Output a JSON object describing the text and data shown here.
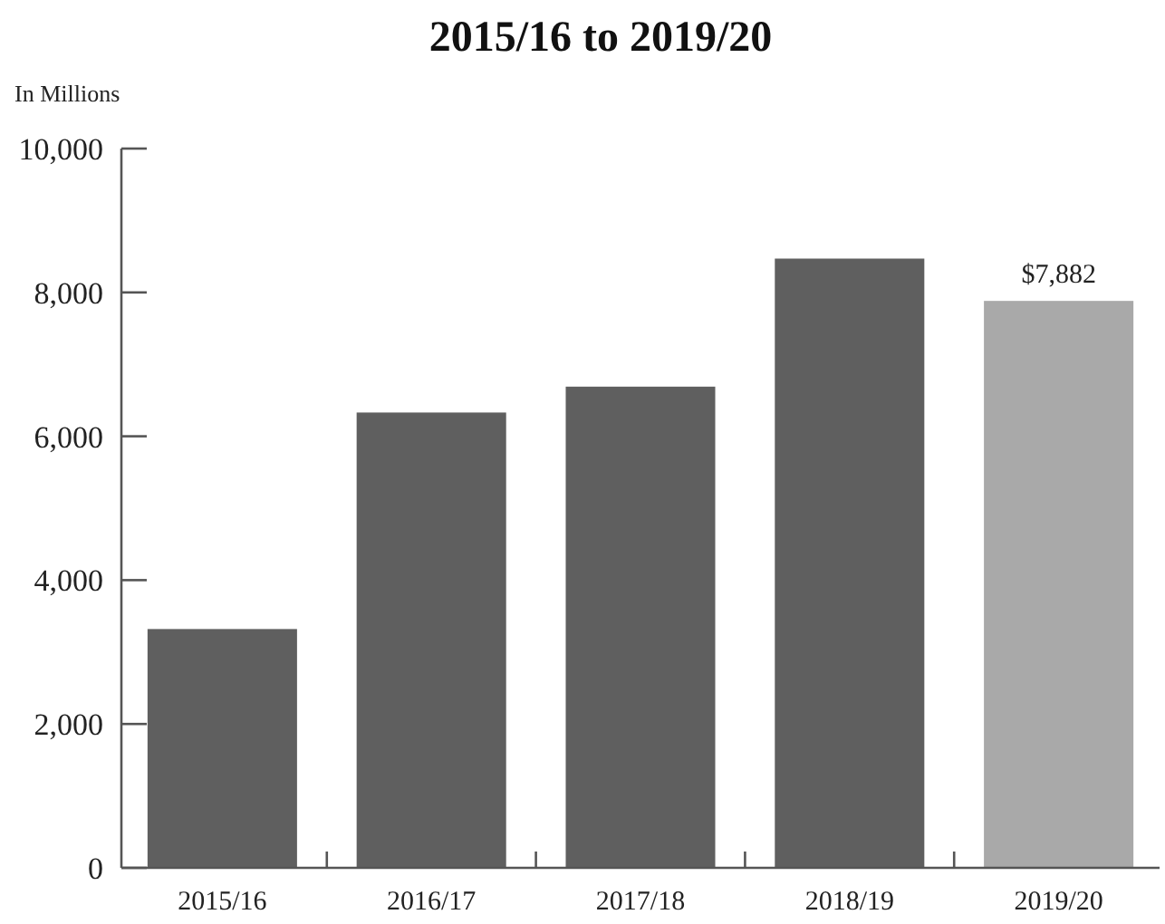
{
  "chart_data": {
    "type": "bar",
    "title": "2015/16 to 2019/20",
    "ylabel": "In Millions",
    "categories": [
      "2015/16",
      "2016/17",
      "2017/18",
      "2018/19",
      "2019/20"
    ],
    "values": [
      3320,
      6330,
      6690,
      8470,
      7882
    ],
    "colors": [
      "#5f5f5f",
      "#5f5f5f",
      "#5f5f5f",
      "#5f5f5f",
      "#a9a9a9"
    ],
    "value_labels": [
      null,
      null,
      null,
      null,
      "$7,882"
    ],
    "ylim": [
      0,
      10000
    ],
    "yticks": [
      0,
      {
        "value": 2000,
        "label": "2,000"
      },
      {
        "value": 4000,
        "label": "4,000"
      },
      {
        "value": 6000,
        "label": "6,000"
      },
      {
        "value": 8000,
        "label": "8,000"
      },
      {
        "value": 10000,
        "label": "10,000"
      }
    ],
    "grid": false
  }
}
